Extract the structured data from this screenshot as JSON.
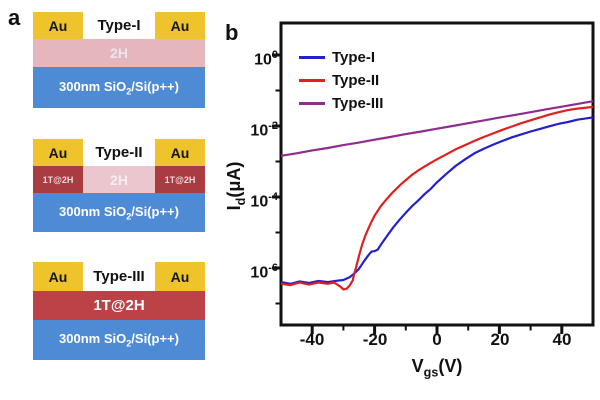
{
  "figure": {
    "panel_a_label": "a",
    "panel_b_label": "b"
  },
  "colors": {
    "au_electrode": "#EFC32B",
    "channel_2h_pink": "#E5B6BC",
    "substrate_blue": "#4F8BD5",
    "contact_1t2h_red": "#A93C42",
    "layer_1t2h_red": "#BC4247",
    "type1_blue": "#2121CD",
    "type2_red": "#E01F1F",
    "type3_purple": "#8F2D8F"
  },
  "panel_a": {
    "label": "a",
    "devices": [
      {
        "type_label": "Type-I",
        "electrode_left": "Au",
        "electrode_right": "Au",
        "channel": "2H",
        "substrate": {
          "pre": "300nm SiO",
          "sub": "2",
          "post": "/Si(p++)"
        }
      },
      {
        "type_label": "Type-II",
        "electrode_left": "Au",
        "electrode_right": "Au",
        "contact_left": "1T@2H",
        "contact_right": "1T@2H",
        "channel": "2H",
        "substrate": {
          "pre": "300nm SiO",
          "sub": "2",
          "post": "/Si(p++)"
        }
      },
      {
        "type_label": "Type-III",
        "electrode_left": "Au",
        "electrode_right": "Au",
        "channel": "1T@2H",
        "substrate": {
          "pre": "300nm SiO",
          "sub": "2",
          "post": "/Si(p++)"
        }
      }
    ]
  },
  "chart_data": {
    "type": "line",
    "panel_label": "b",
    "xlabel": {
      "pre": "V",
      "sub": "gs",
      "post": "(V)"
    },
    "ylabel": {
      "pre": "I",
      "sub": "d",
      "post": "(μA)"
    },
    "x_range": [
      -50,
      50
    ],
    "y_scale": "log",
    "y_range_exp": [
      -7.6,
      0.9
    ],
    "grid": "off",
    "legend_position": "top-left-inside",
    "xticks": [
      -40,
      -20,
      0,
      20,
      40
    ],
    "xticks_minor": [
      -30,
      -10,
      10,
      30
    ],
    "yticks": [
      {
        "label_base": "10",
        "label_exp": "0",
        "exp": 0
      },
      {
        "label_base": "10",
        "label_exp": "-2",
        "exp": -2
      },
      {
        "label_base": "10",
        "label_exp": "-4",
        "exp": -4
      },
      {
        "label_base": "10",
        "label_exp": "-6",
        "exp": -6
      }
    ],
    "yticks_minor_exp": [
      -1,
      -3,
      -5,
      -7
    ],
    "series": [
      {
        "name": "Type-I",
        "color": "#2121CD",
        "points": [
          [
            -50,
            4e-07
          ],
          [
            -47,
            3.6e-07
          ],
          [
            -44,
            4.2e-07
          ],
          [
            -41,
            3.8e-07
          ],
          [
            -38,
            4.3e-07
          ],
          [
            -35,
            4e-07
          ],
          [
            -32,
            4.4e-07
          ],
          [
            -30,
            4.6e-07
          ],
          [
            -28,
            5.5e-07
          ],
          [
            -26.5,
            7e-07
          ],
          [
            -25,
            9.5e-07
          ],
          [
            -23.5,
            1.5e-06
          ],
          [
            -22,
            2.3e-06
          ],
          [
            -21,
            2.9e-06
          ],
          [
            -20,
            3e-06
          ],
          [
            -19,
            3.3e-06
          ],
          [
            -18,
            4.5e-06
          ],
          [
            -16,
            8e-06
          ],
          [
            -14,
            1.4e-05
          ],
          [
            -12,
            2.3e-05
          ],
          [
            -10,
            3.6e-05
          ],
          [
            -8,
            5.5e-05
          ],
          [
            -6,
            8e-05
          ],
          [
            -4,
            0.00012
          ],
          [
            -2,
            0.00017
          ],
          [
            0,
            0.00026
          ],
          [
            3,
            0.00045
          ],
          [
            6,
            0.00075
          ],
          [
            9,
            0.00115
          ],
          [
            12,
            0.0017
          ],
          [
            15,
            0.0023
          ],
          [
            18,
            0.003
          ],
          [
            21,
            0.0038
          ],
          [
            24,
            0.0048
          ],
          [
            27,
            0.0058
          ],
          [
            30,
            0.007
          ],
          [
            33,
            0.0083
          ],
          [
            36,
            0.0098
          ],
          [
            39,
            0.0115
          ],
          [
            42,
            0.013
          ],
          [
            45,
            0.015
          ],
          [
            48,
            0.0165
          ],
          [
            50,
            0.0175
          ]
        ]
      },
      {
        "name": "Type-II",
        "color": "#E01F1F",
        "points": [
          [
            -50,
            3.6e-07
          ],
          [
            -47,
            3.3e-07
          ],
          [
            -44,
            3.9e-07
          ],
          [
            -41,
            3.4e-07
          ],
          [
            -38,
            3.9e-07
          ],
          [
            -35,
            3.6e-07
          ],
          [
            -33,
            3.9e-07
          ],
          [
            -31,
            3e-07
          ],
          [
            -30,
            2.5e-07
          ],
          [
            -29,
            2.6e-07
          ],
          [
            -28,
            3.2e-07
          ],
          [
            -27,
            4.5e-07
          ],
          [
            -26.5,
            7e-07
          ],
          [
            -26,
            1e-06
          ],
          [
            -25,
            2.2e-06
          ],
          [
            -24,
            4.5e-06
          ],
          [
            -23,
            8e-06
          ],
          [
            -22,
            1.3e-05
          ],
          [
            -21,
            2e-05
          ],
          [
            -20,
            3e-05
          ],
          [
            -18,
            5.5e-05
          ],
          [
            -16,
            9e-05
          ],
          [
            -14,
            0.00014
          ],
          [
            -12,
            0.00021
          ],
          [
            -10,
            0.0003
          ],
          [
            -8,
            0.00042
          ],
          [
            -6,
            0.00056
          ],
          [
            -4,
            0.00072
          ],
          [
            -2,
            0.00092
          ],
          [
            0,
            0.00115
          ],
          [
            3,
            0.0016
          ],
          [
            6,
            0.0022
          ],
          [
            9,
            0.0029
          ],
          [
            12,
            0.0038
          ],
          [
            15,
            0.0049
          ],
          [
            18,
            0.0062
          ],
          [
            21,
            0.0078
          ],
          [
            24,
            0.0097
          ],
          [
            27,
            0.012
          ],
          [
            30,
            0.0145
          ],
          [
            33,
            0.0175
          ],
          [
            36,
            0.021
          ],
          [
            39,
            0.0245
          ],
          [
            42,
            0.028
          ],
          [
            45,
            0.031
          ],
          [
            48,
            0.033
          ],
          [
            50,
            0.0345
          ]
        ]
      },
      {
        "name": "Type-III",
        "color": "#8F2D8F",
        "points": [
          [
            -50,
            0.00145
          ],
          [
            -45,
            0.0017
          ],
          [
            -40,
            0.00205
          ],
          [
            -35,
            0.0024
          ],
          [
            -30,
            0.0029
          ],
          [
            -25,
            0.0034
          ],
          [
            -20,
            0.0041
          ],
          [
            -15,
            0.0049
          ],
          [
            -10,
            0.0059
          ],
          [
            -5,
            0.007
          ],
          [
            0,
            0.0084
          ],
          [
            5,
            0.01
          ],
          [
            10,
            0.012
          ],
          [
            15,
            0.0144
          ],
          [
            20,
            0.0172
          ],
          [
            25,
            0.0205
          ],
          [
            30,
            0.0245
          ],
          [
            35,
            0.0295
          ],
          [
            40,
            0.035
          ],
          [
            45,
            0.042
          ],
          [
            50,
            0.05
          ]
        ]
      }
    ]
  }
}
